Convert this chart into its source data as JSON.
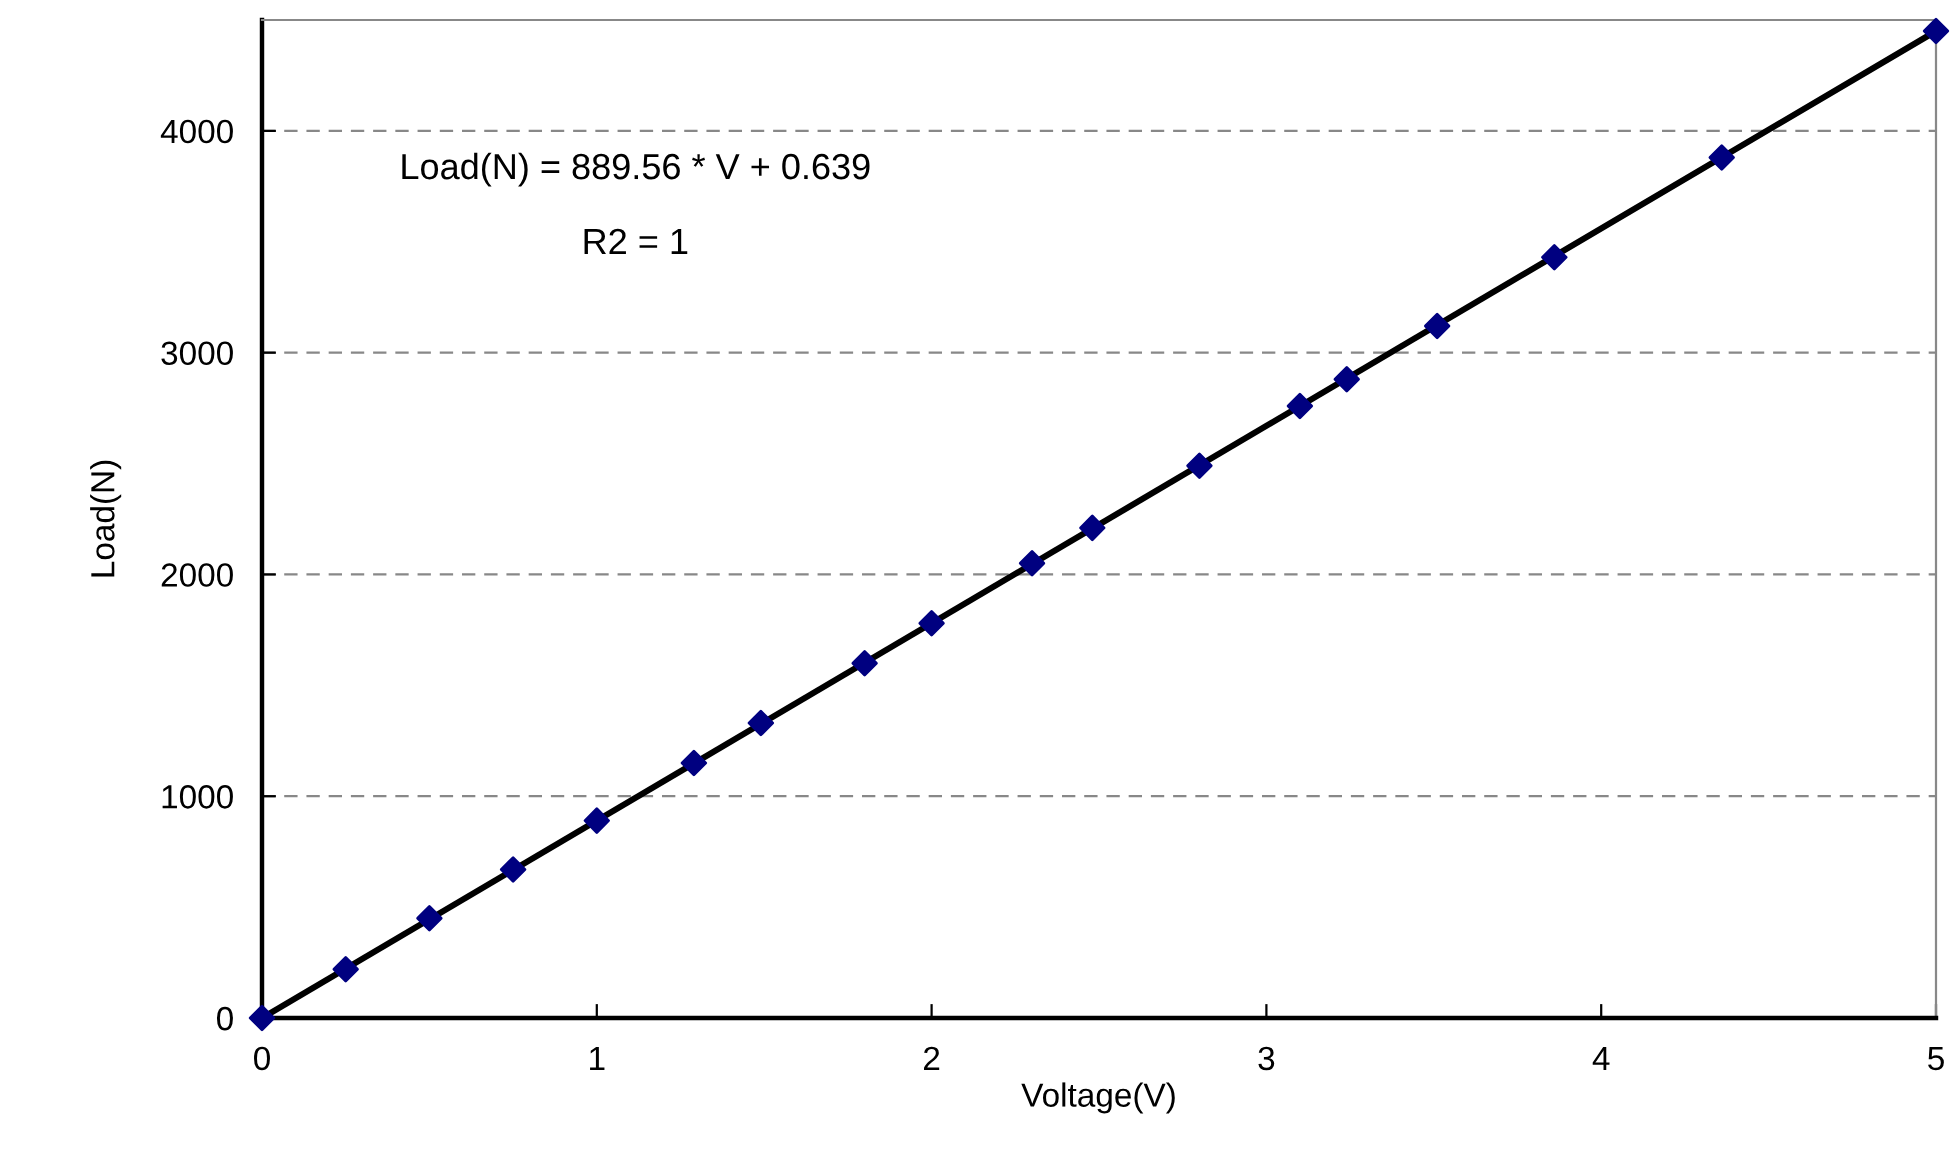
{
  "chart_data": {
    "type": "scatter",
    "xlabel": "Voltage(V)",
    "ylabel": "Load(N)",
    "annotations": [
      "Load(N) = 889.56 * V + 0.639",
      "R2 = 1"
    ],
    "xlim": [
      0,
      5
    ],
    "xticks": [
      0,
      1,
      2,
      3,
      4,
      5
    ],
    "ylim": [
      0,
      4500
    ],
    "yticks": [
      0,
      1000,
      2000,
      3000,
      4000
    ],
    "grid": "y",
    "marker": "diamond",
    "series": [
      {
        "color": "#000080",
        "x": [
          0,
          0.25,
          0.5,
          0.75,
          1.0,
          1.29,
          1.49,
          1.8,
          2.0,
          2.3,
          2.48,
          2.8,
          3.1,
          3.24,
          3.51,
          3.86,
          4.36,
          5.0
        ],
        "values": [
          0,
          220,
          450,
          670,
          890,
          1150,
          1330,
          1600,
          1780,
          2050,
          2210,
          2490,
          2760,
          2880,
          3120,
          3430,
          3880,
          4450
        ]
      },
      {
        "type": "line",
        "color": "#000000",
        "x": [
          0,
          5
        ],
        "values": [
          0,
          4450
        ],
        "marker": "none"
      }
    ]
  }
}
